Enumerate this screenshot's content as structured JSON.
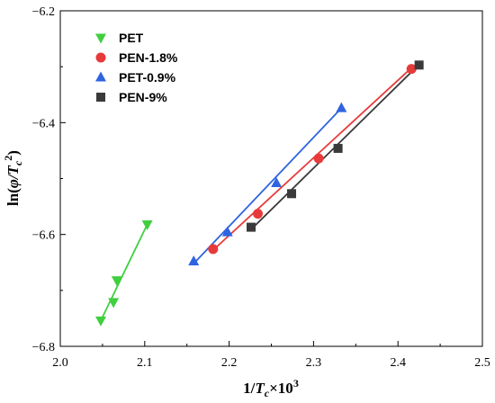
{
  "chart_data": {
    "type": "scatter",
    "x_axis": {
      "title_main": "1/",
      "title_italic": "T",
      "title_sub": "c",
      "title_times": "×10",
      "title_sup": "3",
      "range": [
        2.0,
        2.5
      ],
      "ticks": [
        2.0,
        2.1,
        2.2,
        2.3,
        2.4,
        2.5
      ],
      "tick_labels": [
        "2.0",
        "2.1",
        "2.2",
        "2.3",
        "2.4",
        "2.5"
      ]
    },
    "y_axis": {
      "title_main": "ln(",
      "title_italic": "φ/T",
      "title_sub": "c",
      "title_sup": "2",
      "title_close": ")",
      "range": [
        -6.8,
        -6.2
      ],
      "ticks": [
        -6.8,
        -6.6,
        -6.4,
        -6.2
      ],
      "tick_labels": [
        "−6.8",
        "−6.6",
        "−6.4",
        "−6.2"
      ]
    },
    "legend_position": "top-left",
    "grid": false,
    "series": [
      {
        "name": "PET",
        "color": "#3fcf3f",
        "marker": "triangle-down",
        "points": [
          [
            2.048,
            -6.754
          ],
          [
            2.063,
            -6.721
          ],
          [
            2.067,
            -6.682
          ],
          [
            2.103,
            -6.582
          ]
        ],
        "fit": [
          [
            2.048,
            -6.754
          ],
          [
            2.103,
            -6.582
          ]
        ]
      },
      {
        "name": "PEN-1.8%",
        "color": "#e83a3a",
        "marker": "circle",
        "points": [
          [
            2.181,
            -6.626
          ],
          [
            2.234,
            -6.563
          ],
          [
            2.306,
            -6.464
          ],
          [
            2.416,
            -6.304
          ]
        ],
        "fit": [
          [
            2.181,
            -6.628
          ],
          [
            2.416,
            -6.302
          ]
        ]
      },
      {
        "name": "PET-0.9%",
        "color": "#2f64e0",
        "marker": "triangle-up",
        "points": [
          [
            2.158,
            -6.648
          ],
          [
            2.198,
            -6.596
          ],
          [
            2.256,
            -6.508
          ],
          [
            2.333,
            -6.374
          ]
        ],
        "fit": [
          [
            2.158,
            -6.652
          ],
          [
            2.333,
            -6.374
          ]
        ]
      },
      {
        "name": "PEN-9%",
        "color": "#3a3a3a",
        "marker": "square",
        "points": [
          [
            2.226,
            -6.587
          ],
          [
            2.274,
            -6.527
          ],
          [
            2.329,
            -6.446
          ],
          [
            2.425,
            -6.297
          ]
        ],
        "fit": [
          [
            2.226,
            -6.591
          ],
          [
            2.425,
            -6.296
          ]
        ]
      }
    ]
  }
}
